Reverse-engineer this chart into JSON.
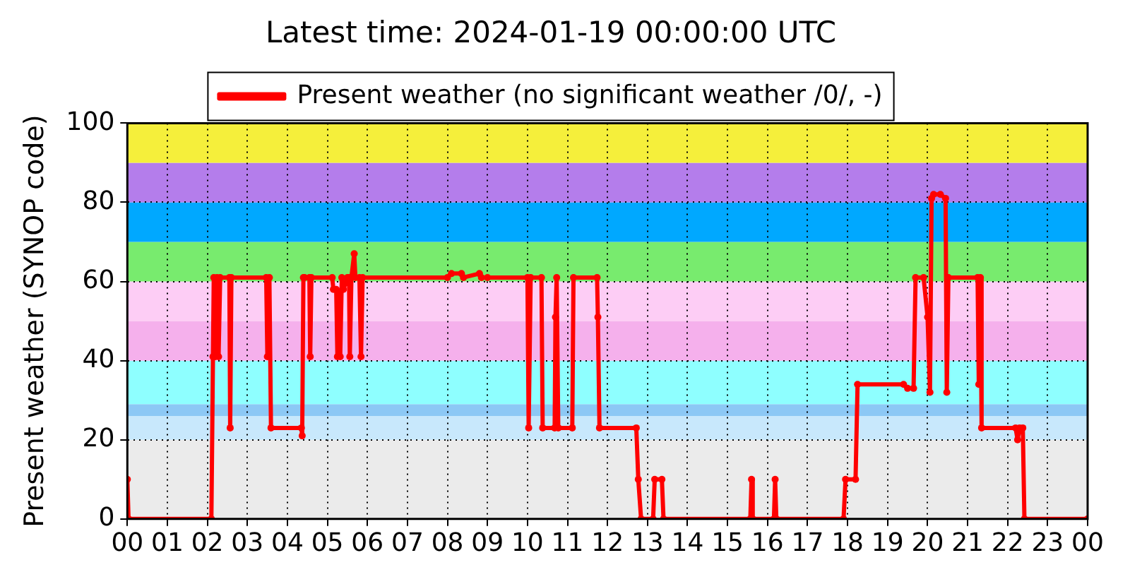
{
  "chart_data": {
    "type": "line",
    "title": "Latest time: 2024-01-19 00:00:00 UTC",
    "ylabel": "Present weather (SYNOP code)",
    "xlim": [
      0,
      24
    ],
    "xticks": [
      {
        "value": 0,
        "label": "00"
      },
      {
        "value": 1,
        "label": "01"
      },
      {
        "value": 2,
        "label": "02"
      },
      {
        "value": 3,
        "label": "03"
      },
      {
        "value": 4,
        "label": "04"
      },
      {
        "value": 5,
        "label": "05"
      },
      {
        "value": 6,
        "label": "06"
      },
      {
        "value": 7,
        "label": "07"
      },
      {
        "value": 8,
        "label": "08"
      },
      {
        "value": 9,
        "label": "09"
      },
      {
        "value": 10,
        "label": "10"
      },
      {
        "value": 11,
        "label": "11"
      },
      {
        "value": 12,
        "label": "12"
      },
      {
        "value": 13,
        "label": "13"
      },
      {
        "value": 14,
        "label": "14"
      },
      {
        "value": 15,
        "label": "15"
      },
      {
        "value": 16,
        "label": "16"
      },
      {
        "value": 17,
        "label": "17"
      },
      {
        "value": 18,
        "label": "18"
      },
      {
        "value": 19,
        "label": "19"
      },
      {
        "value": 20,
        "label": "20"
      },
      {
        "value": 21,
        "label": "21"
      },
      {
        "value": 22,
        "label": "22"
      },
      {
        "value": 23,
        "label": "23"
      },
      {
        "value": 24,
        "label": "00"
      }
    ],
    "ylim": [
      0,
      100
    ],
    "yticks": [
      0,
      20,
      40,
      60,
      80,
      100
    ],
    "grid": true,
    "legend": "top",
    "marker": "circle",
    "line_style": "solid",
    "bands": [
      {
        "axis": "y",
        "from": 0,
        "to": 20,
        "color": "#ebebeb"
      },
      {
        "axis": "y",
        "from": 20,
        "to": 26,
        "color": "#c8e8fc"
      },
      {
        "axis": "y",
        "from": 26,
        "to": 29,
        "color": "#8cc8f5"
      },
      {
        "axis": "y",
        "from": 29,
        "to": 40,
        "color": "#8effff"
      },
      {
        "axis": "y",
        "from": 40,
        "to": 50,
        "color": "#f5b0ec"
      },
      {
        "axis": "y",
        "from": 50,
        "to": 60,
        "color": "#fdcdf5"
      },
      {
        "axis": "y",
        "from": 60,
        "to": 70,
        "color": "#78eb6e"
      },
      {
        "axis": "y",
        "from": 70,
        "to": 80,
        "color": "#00a8ff"
      },
      {
        "axis": "y",
        "from": 80,
        "to": 90,
        "color": "#b47deb"
      },
      {
        "axis": "y",
        "from": 90,
        "to": 100,
        "color": "#f5ef3b"
      }
    ],
    "series": [
      {
        "name": "Present weather (no significant weather /0/, -)",
        "color": "#ff0000",
        "x": [
          0,
          0.03,
          2.1,
          2.14,
          2.16,
          2.2,
          2.24,
          2.28,
          2.32,
          2.55,
          2.57,
          2.6,
          3.47,
          3.5,
          3.55,
          3.59,
          4.35,
          4.37,
          4.4,
          4.43,
          4.55,
          4.57,
          4.6,
          5.12,
          5.15,
          5.22,
          5.25,
          5.32,
          5.36,
          5.4,
          5.5,
          5.54,
          5.56,
          5.6,
          5.67,
          5.7,
          5.8,
          5.84,
          5.88,
          8.0,
          8.1,
          8.35,
          8.4,
          8.8,
          8.85,
          9.0,
          10.0,
          10.03,
          10.08,
          10.35,
          10.38,
          10.68,
          10.7,
          10.73,
          10.77,
          11.12,
          11.15,
          11.74,
          11.76,
          11.8,
          12.72,
          12.77,
          12.84,
          13.14,
          13.18,
          13.36,
          13.4,
          15.57,
          15.6,
          15.63,
          16.16,
          16.19,
          16.22,
          17.9,
          17.95,
          18.2,
          18.25,
          19.4,
          19.5,
          19.65,
          19.7,
          19.9,
          20.0,
          20.06,
          20.1,
          20.15,
          20.32,
          20.45,
          20.48,
          20.52,
          21.25,
          21.28,
          21.32,
          21.35,
          22.2,
          22.25,
          22.3,
          22.38,
          22.42,
          24
        ],
        "values": [
          10,
          0,
          0,
          41,
          61,
          41,
          61,
          41,
          61,
          61,
          23,
          61,
          61,
          41,
          61,
          23,
          23,
          21,
          61,
          61,
          61,
          41,
          61,
          61,
          58,
          58,
          41,
          41,
          61,
          58,
          61,
          61,
          41,
          61,
          67,
          61,
          61,
          41,
          61,
          61,
          62,
          62,
          61,
          62,
          61,
          61,
          61,
          23,
          61,
          61,
          23,
          23,
          51,
          61,
          23,
          23,
          61,
          61,
          51,
          23,
          23,
          10,
          0,
          0,
          10,
          10,
          0,
          0,
          10,
          0,
          0,
          10,
          0,
          0,
          10,
          10,
          34,
          34,
          33,
          33,
          61,
          61,
          51,
          32,
          81,
          82,
          82,
          81,
          32,
          61,
          61,
          34,
          61,
          23,
          23,
          20,
          23,
          23,
          0,
          0
        ]
      }
    ]
  }
}
